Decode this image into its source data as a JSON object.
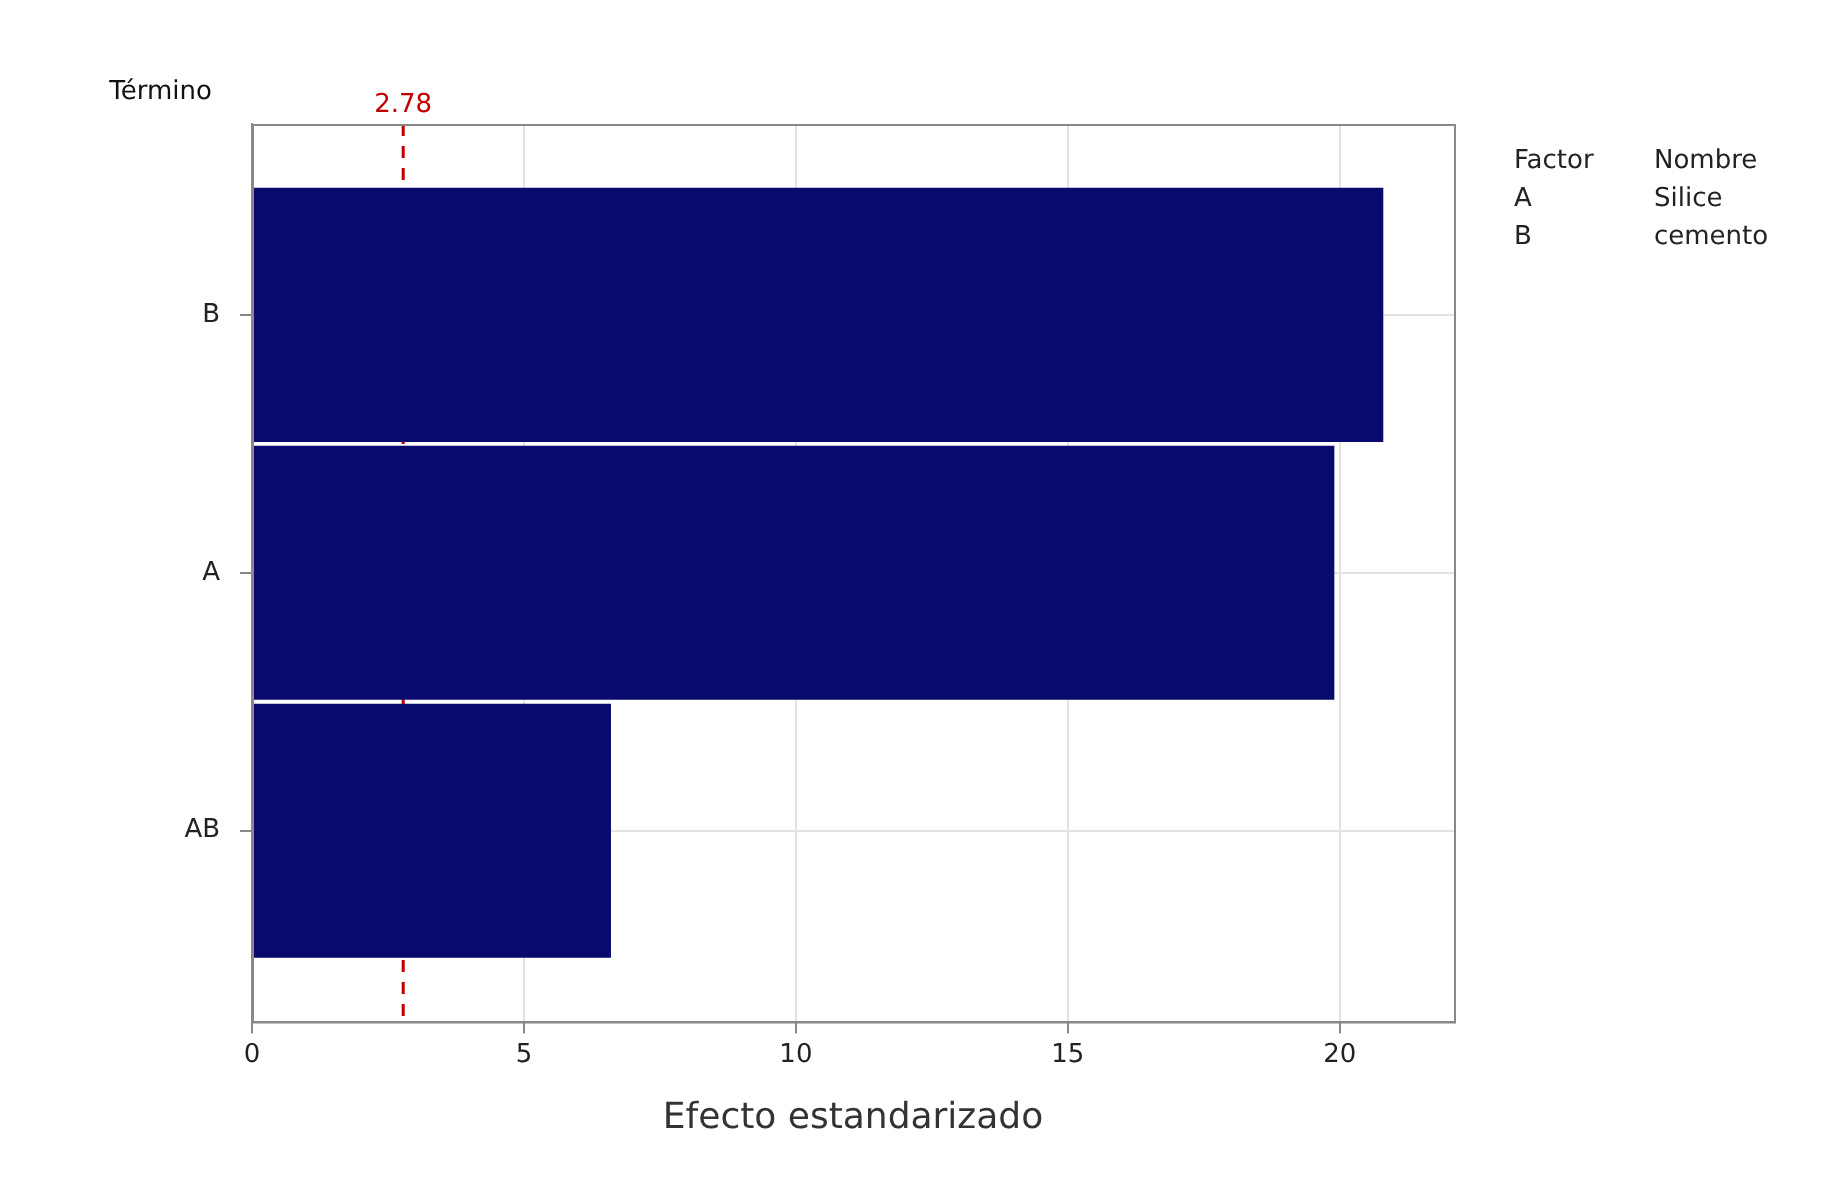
{
  "chart_data": {
    "type": "bar",
    "orientation": "horizontal",
    "categories": [
      "B",
      "A",
      "AB"
    ],
    "values": [
      20.8,
      19.9,
      6.6
    ],
    "color": "#0a0a6e",
    "xlabel": "Efecto estandarizado",
    "ylabel": "Término",
    "xlim": [
      0,
      22.1
    ],
    "xticks": [
      0,
      5,
      10,
      15,
      20
    ],
    "grid": true,
    "legend": false,
    "ref_lines": [
      {
        "axis": "x",
        "value": 2.78,
        "label": "2.78",
        "color": "#c00000",
        "line_style": "dashed"
      }
    ],
    "annotations": [
      "Factor",
      "Nombre",
      "A",
      "Silice",
      "B",
      "cemento"
    ]
  }
}
